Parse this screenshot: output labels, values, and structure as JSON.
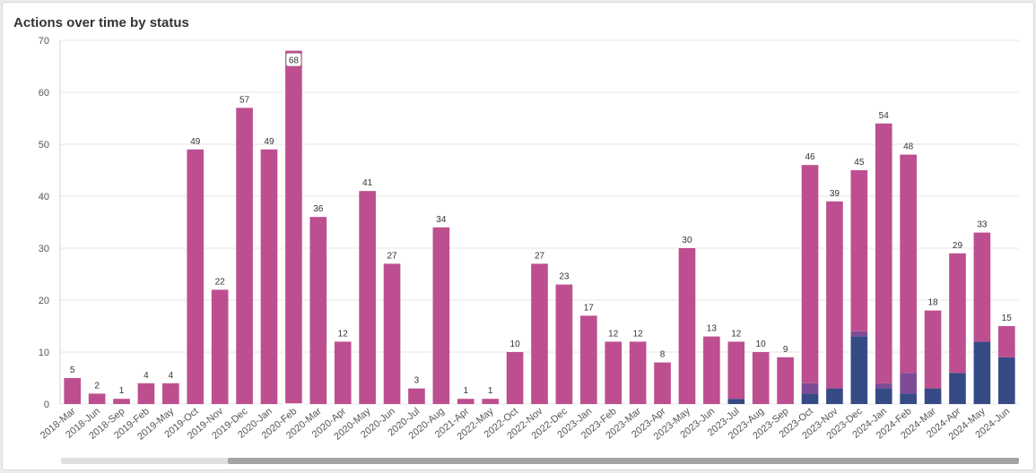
{
  "title": "Actions over time by status",
  "colors": {
    "primary": "#bd4f90",
    "secondary": "#364a86",
    "tertiary": "#7e4c95",
    "grid": "#e6e6e6",
    "axis_text": "#555555",
    "label_text": "#333333"
  },
  "chart_data": {
    "type": "bar",
    "stacked": true,
    "title": "Actions over time by status",
    "xlabel": "",
    "ylabel": "",
    "ylim": [
      0,
      70
    ],
    "yticks": [
      0,
      10,
      20,
      30,
      40,
      50,
      60,
      70
    ],
    "grid": true,
    "categories": [
      "2018-Mar",
      "2018-Jun",
      "2018-Sep",
      "2019-Feb",
      "2019-May",
      "2019-Oct",
      "2019-Nov",
      "2019-Dec",
      "2020-Jan",
      "2020-Feb",
      "2020-Mar",
      "2020-Apr",
      "2020-May",
      "2020-Jun",
      "2020-Jul",
      "2020-Aug",
      "2021-Apr",
      "2022-May",
      "2022-Oct",
      "2022-Nov",
      "2022-Dec",
      "2023-Jan",
      "2023-Feb",
      "2023-Mar",
      "2023-Apr",
      "2023-May",
      "2023-Jun",
      "2023-Jul",
      "2023-Aug",
      "2023-Sep",
      "2023-Oct",
      "2023-Nov",
      "2023-Dec",
      "2024-Jan",
      "2024-Feb",
      "2024-Mar",
      "2024-Apr",
      "2024-May",
      "2024-Jun"
    ],
    "totals": [
      5,
      2,
      1,
      4,
      4,
      49,
      22,
      57,
      49,
      68,
      36,
      12,
      41,
      27,
      3,
      34,
      1,
      1,
      10,
      27,
      23,
      17,
      12,
      12,
      8,
      30,
      13,
      12,
      10,
      9,
      46,
      39,
      45,
      54,
      48,
      18,
      29,
      33,
      15
    ],
    "highlighted_index": 9,
    "series": [
      {
        "name": "Navy",
        "color": "#364a86",
        "values": [
          0,
          0,
          0,
          0,
          0,
          0,
          0,
          0,
          0,
          0,
          0,
          0,
          0,
          0,
          0,
          0,
          0,
          0,
          0,
          0,
          0,
          0,
          0,
          0,
          0,
          0,
          0,
          1,
          0,
          0,
          2,
          3,
          13,
          3,
          2,
          3,
          6,
          12,
          9
        ]
      },
      {
        "name": "Purple",
        "color": "#7e4c95",
        "values": [
          0,
          0,
          0,
          0,
          0,
          0,
          0,
          0,
          0,
          0,
          0,
          0,
          0,
          0,
          0,
          0,
          0,
          0,
          0,
          0,
          0,
          0,
          0,
          0,
          0,
          0,
          0,
          0,
          0,
          0,
          2,
          0,
          1,
          1,
          4,
          0,
          0,
          0,
          0
        ]
      },
      {
        "name": "Pink",
        "color": "#bd4f90",
        "values": [
          5,
          2,
          1,
          4,
          4,
          49,
          22,
          57,
          49,
          68,
          36,
          12,
          41,
          27,
          3,
          34,
          1,
          1,
          10,
          27,
          23,
          17,
          12,
          12,
          8,
          30,
          13,
          11,
          10,
          9,
          42,
          36,
          31,
          50,
          42,
          15,
          23,
          21,
          6
        ]
      }
    ]
  }
}
